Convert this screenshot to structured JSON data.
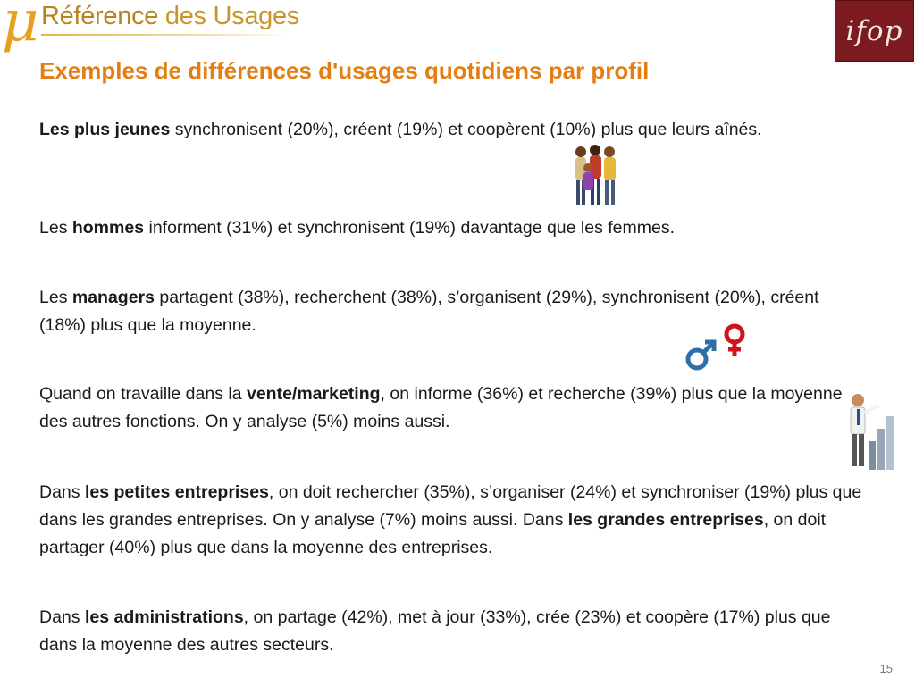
{
  "brand": {
    "mu": "μ",
    "part1": "Référence",
    "part2": " des Usages"
  },
  "ifop": {
    "text": "ifop"
  },
  "title": "Exemples de différences d'usages quotidiens par profil",
  "p1": {
    "b1": "Les plus jeunes",
    "t1": " synchronisent (20%), créent (19%) et coopèrent (10%) plus que leurs aînés."
  },
  "p2": {
    "t0": "Les ",
    "b1": "hommes",
    "t1": " informent (31%) et synchronisent (19%) davantage que les femmes."
  },
  "p3": {
    "t0": "Les ",
    "b1": "managers",
    "t1": " partagent (38%), recherchent (38%), s’organisent (29%), synchronisent (20%), créent (18%) plus que la moyenne."
  },
  "p4": {
    "t0": "Quand on travaille dans la ",
    "b1": "vente/marketing",
    "t1": ", on informe (36%) et recherche (39%) plus que la moyenne des autres fonctions. On y analyse (5%) moins aussi."
  },
  "p5": {
    "t0": "Dans ",
    "b1": "les petites entreprises",
    "t1": ", on doit rechercher (35%), s’organiser (24%) et synchroniser (19%) plus que dans les grandes entreprises. On y analyse (7%) moins aussi. Dans ",
    "b2": "les grandes entreprises",
    "t2": ", on doit partager (40%) plus que dans la moyenne des entreprises."
  },
  "p6": {
    "t0": "Dans ",
    "b1": "les administrations",
    "t1": ", on partage (42%), met à jour (33%), crée (23%) et coopère (17%) plus que dans la moyenne des autres secteurs."
  },
  "page_number": "15",
  "colors": {
    "title": "#e47e12",
    "ifop_bg": "#7b1b1f",
    "brand": "#c9952a",
    "male": "#2f6fa8",
    "female": "#d0141a"
  }
}
